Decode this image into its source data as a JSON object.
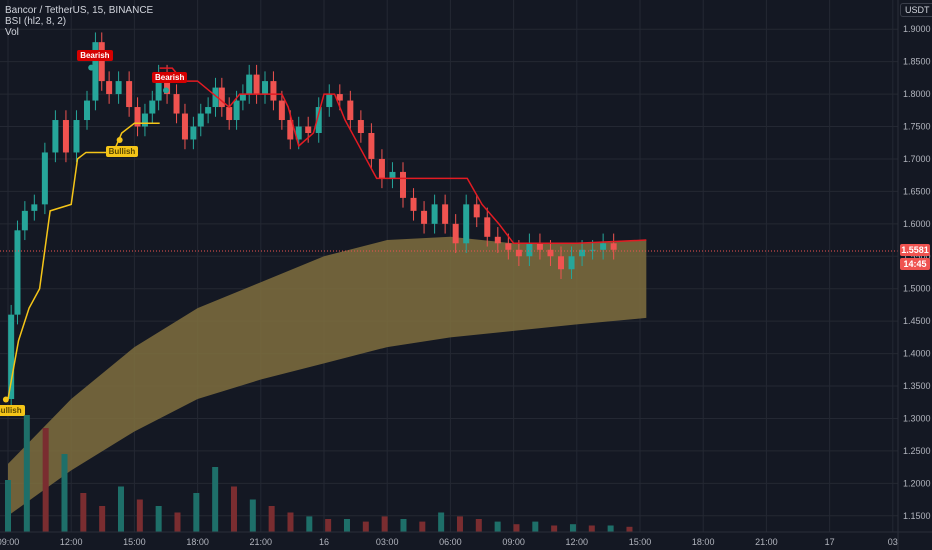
{
  "header": {
    "symbol_line": "Bancor / TetherUS, 15, BINANCE",
    "indicator_line": "BSI (hl2, 8, 2)",
    "volume_line": "Vol",
    "currency": "USDT"
  },
  "price_scale": {
    "current_price": "1.5581",
    "countdown": "14:45"
  },
  "signals": [
    {
      "text": "Bearish",
      "kind": "bearish",
      "time": 3.95,
      "price": 1.85
    },
    {
      "text": "Bearish",
      "kind": "bearish",
      "time": 7.5,
      "price": 1.815
    },
    {
      "text": "Bullish",
      "kind": "bullish",
      "time": 5.3,
      "price": 1.72
    },
    {
      "text": "Bullish",
      "kind": "bullish",
      "time": -0.1,
      "price": 1.32
    }
  ],
  "colors": {
    "background": "#141823",
    "up": "#26a69a",
    "down": "#ef5350",
    "up_volume": "#1e6f69",
    "down_volume": "#7a2d30",
    "supertrend_bull": "#f5c518",
    "supertrend_bear": "#e31b23",
    "cloud": "#7f6f3e",
    "grid": "#242833"
  },
  "chart_data": {
    "type": "candlestick",
    "title": "Bancor / TetherUS, 15, BINANCE",
    "xlabel": "",
    "ylabel": "",
    "ylim": [
      1.125,
      1.945
    ],
    "x_axis_ticks": [
      "09:00",
      "12:00",
      "15:00",
      "18:00",
      "21:00",
      "16",
      "03:00",
      "06:00",
      "09:00",
      "12:00",
      "15:00",
      "18:00",
      "21:00",
      "17",
      "03"
    ],
    "y_axis_ticks": [
      1.15,
      1.2,
      1.25,
      1.3,
      1.35,
      1.4,
      1.45,
      1.5,
      1.55,
      1.6,
      1.65,
      1.7,
      1.75,
      1.8,
      1.85,
      1.9
    ],
    "price_points": [
      [
        0,
        1.33
      ],
      [
        0.3,
        1.46
      ],
      [
        0.6,
        1.59
      ],
      [
        1,
        1.62
      ],
      [
        1.5,
        1.63
      ],
      [
        2,
        1.71
      ],
      [
        2.5,
        1.76
      ],
      [
        3,
        1.71
      ],
      [
        3.5,
        1.76
      ],
      [
        4,
        1.79
      ],
      [
        4.3,
        1.88
      ],
      [
        4.6,
        1.82
      ],
      [
        5,
        1.8
      ],
      [
        5.5,
        1.82
      ],
      [
        6,
        1.78
      ],
      [
        6.3,
        1.75
      ],
      [
        6.7,
        1.77
      ],
      [
        7,
        1.79
      ],
      [
        7.3,
        1.83
      ],
      [
        7.8,
        1.8
      ],
      [
        8.2,
        1.77
      ],
      [
        8.6,
        1.73
      ],
      [
        9,
        1.75
      ],
      [
        9.3,
        1.77
      ],
      [
        9.7,
        1.78
      ],
      [
        10,
        1.81
      ],
      [
        10.3,
        1.78
      ],
      [
        10.7,
        1.76
      ],
      [
        11,
        1.79
      ],
      [
        11.3,
        1.8
      ],
      [
        11.6,
        1.83
      ],
      [
        12,
        1.8
      ],
      [
        12.4,
        1.82
      ],
      [
        12.8,
        1.79
      ],
      [
        13.2,
        1.76
      ],
      [
        13.6,
        1.73
      ],
      [
        14,
        1.75
      ],
      [
        14.5,
        1.74
      ],
      [
        15,
        1.78
      ],
      [
        15.5,
        1.8
      ],
      [
        16,
        1.79
      ],
      [
        16.5,
        1.76
      ],
      [
        17,
        1.74
      ],
      [
        17.5,
        1.7
      ],
      [
        18,
        1.67
      ],
      [
        18.5,
        1.68
      ],
      [
        19,
        1.64
      ],
      [
        19.5,
        1.62
      ],
      [
        20,
        1.6
      ],
      [
        20.5,
        1.63
      ],
      [
        21,
        1.6
      ],
      [
        21.5,
        1.57
      ],
      [
        22,
        1.63
      ],
      [
        22.5,
        1.61
      ],
      [
        23,
        1.58
      ],
      [
        23.5,
        1.57
      ],
      [
        24,
        1.56
      ],
      [
        24.5,
        1.55
      ],
      [
        25,
        1.57
      ],
      [
        25.5,
        1.56
      ],
      [
        26,
        1.55
      ],
      [
        26.5,
        1.53
      ],
      [
        27,
        1.55
      ],
      [
        27.5,
        1.56
      ],
      [
        28,
        1.56
      ],
      [
        28.5,
        1.57
      ],
      [
        29,
        1.56
      ]
    ],
    "supertrend_bull": [
      [
        0,
        1.33
      ],
      [
        0.5,
        1.42
      ],
      [
        1,
        1.47
      ],
      [
        1.5,
        1.5
      ],
      [
        2,
        1.62
      ],
      [
        3,
        1.63
      ],
      [
        3.3,
        1.7
      ],
      [
        3.7,
        1.71
      ],
      [
        4.3,
        1.71
      ],
      [
        5,
        1.71
      ],
      [
        5.4,
        1.74
      ],
      [
        6,
        1.755
      ],
      [
        6.8,
        1.755
      ],
      [
        7.2,
        1.755
      ]
    ],
    "supertrend_bear": [
      [
        7.2,
        1.84
      ],
      [
        7.8,
        1.84
      ],
      [
        8.3,
        1.82
      ],
      [
        9,
        1.82
      ],
      [
        10.5,
        1.78
      ],
      [
        11,
        1.8
      ],
      [
        13,
        1.8
      ],
      [
        13.3,
        1.78
      ],
      [
        13.8,
        1.72
      ],
      [
        14.5,
        1.74
      ],
      [
        15,
        1.8
      ],
      [
        15.5,
        1.8
      ],
      [
        16,
        1.76
      ],
      [
        17,
        1.7
      ],
      [
        17.5,
        1.67
      ],
      [
        18.5,
        1.67
      ],
      [
        21.8,
        1.67
      ],
      [
        22.5,
        1.63
      ],
      [
        23.3,
        1.6
      ],
      [
        24,
        1.57
      ],
      [
        27,
        1.57
      ],
      [
        30.3,
        1.575
      ]
    ],
    "cloud_upper": [
      [
        0,
        1.23
      ],
      [
        3,
        1.33
      ],
      [
        6,
        1.41
      ],
      [
        9,
        1.47
      ],
      [
        12,
        1.51
      ],
      [
        15,
        1.55
      ],
      [
        18,
        1.575
      ],
      [
        21,
        1.58
      ],
      [
        24,
        1.57
      ],
      [
        27,
        1.57
      ],
      [
        30.3,
        1.575
      ]
    ],
    "cloud_lower": [
      [
        0,
        1.15
      ],
      [
        3,
        1.22
      ],
      [
        6,
        1.28
      ],
      [
        9,
        1.33
      ],
      [
        12,
        1.36
      ],
      [
        15,
        1.385
      ],
      [
        18,
        1.41
      ],
      [
        21,
        1.425
      ],
      [
        24,
        1.435
      ],
      [
        27,
        1.445
      ],
      [
        30.3,
        1.455
      ]
    ],
    "volume_levels": [
      0.4,
      0.9,
      0.8,
      0.6,
      0.3,
      0.2,
      0.35,
      0.25,
      0.2,
      0.15,
      0.3,
      0.5,
      0.35,
      0.25,
      0.2,
      0.15,
      0.12,
      0.1,
      0.1,
      0.08,
      0.12,
      0.1,
      0.08,
      0.15,
      0.12,
      0.1,
      0.08,
      0.06,
      0.08,
      0.05,
      0.06,
      0.05,
      0.05,
      0.04
    ],
    "volume_up_flags": [
      true,
      true,
      false,
      true,
      false,
      false,
      true,
      false,
      true,
      false,
      true,
      true,
      false,
      true,
      false,
      false,
      true,
      false,
      true,
      false,
      false,
      true,
      false,
      true,
      false,
      false,
      true,
      false,
      true,
      false,
      true,
      false,
      true,
      false
    ]
  }
}
